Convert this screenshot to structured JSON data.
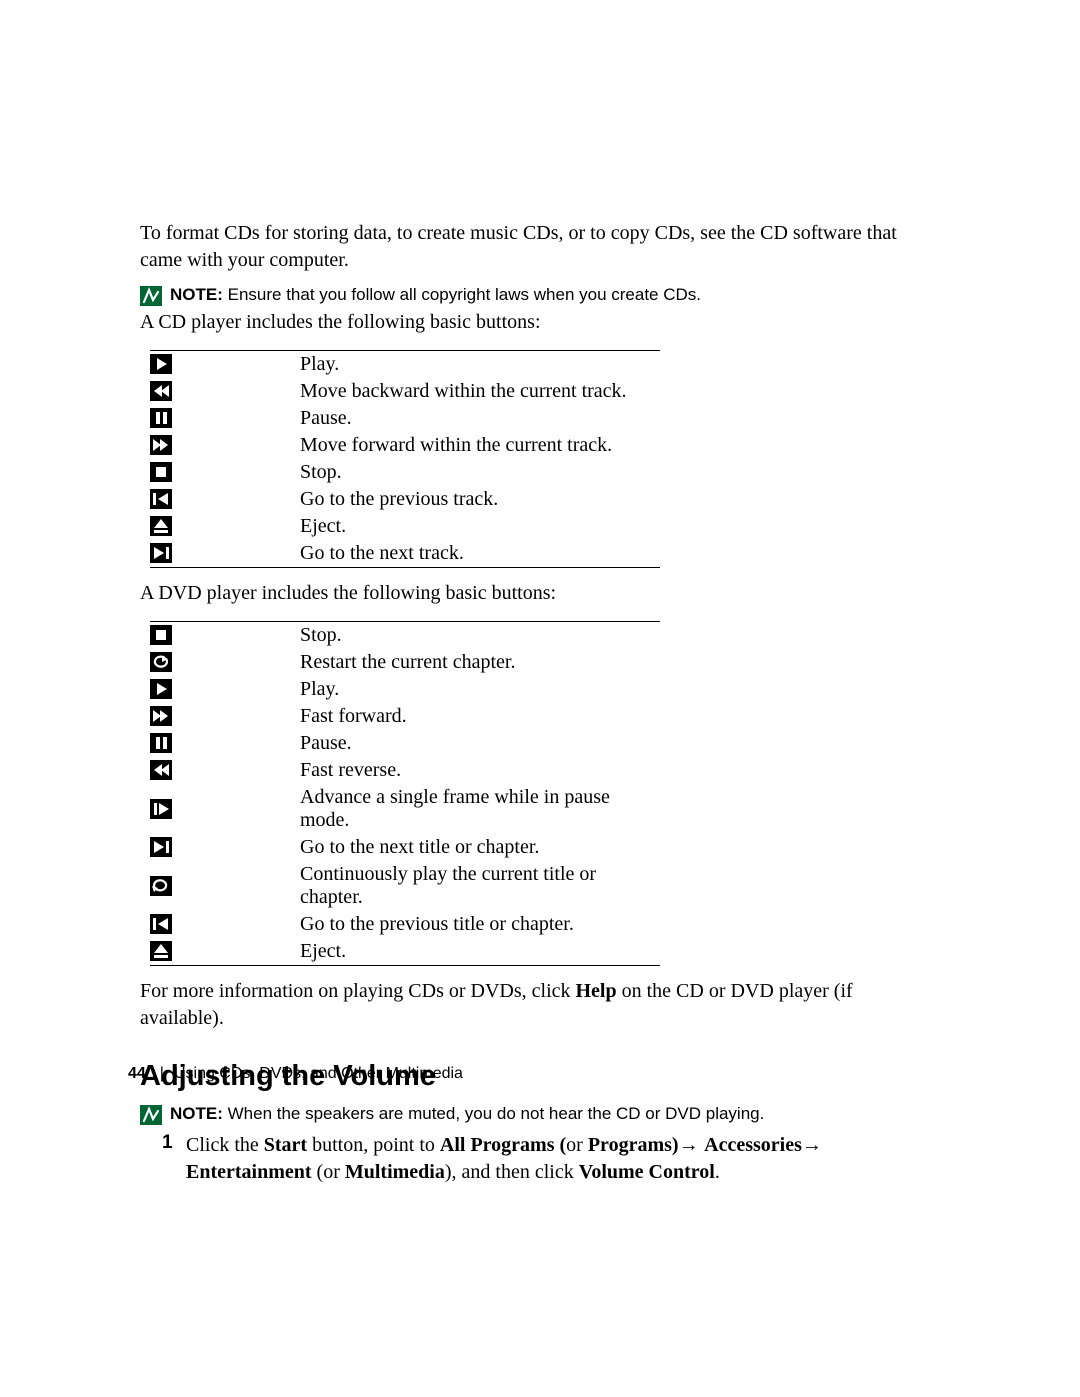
{
  "intro_paragraph": "To format CDs for storing data, to create music CDs, or to copy CDs, see the CD software that came with your computer.",
  "note1": {
    "label": "NOTE:",
    "text": " Ensure that you follow all copyright laws when you create CDs."
  },
  "cd_intro": "A CD player includes the following basic buttons:",
  "cd_buttons": [
    {
      "icon": "play",
      "desc": "Play."
    },
    {
      "icon": "rewind",
      "desc": "Move backward within the current track."
    },
    {
      "icon": "pause",
      "desc": "Pause."
    },
    {
      "icon": "ffwd",
      "desc": "Move forward within the current track."
    },
    {
      "icon": "stop",
      "desc": "Stop."
    },
    {
      "icon": "prev",
      "desc": "Go to the previous track."
    },
    {
      "icon": "eject",
      "desc": "Eject."
    },
    {
      "icon": "next",
      "desc": "Go to the next track."
    }
  ],
  "dvd_intro": "A DVD player includes the following basic buttons:",
  "dvd_buttons": [
    {
      "icon": "stop",
      "desc": "Stop."
    },
    {
      "icon": "restart",
      "desc": "Restart the current chapter."
    },
    {
      "icon": "play",
      "desc": "Play."
    },
    {
      "icon": "ffwd",
      "desc": "Fast forward."
    },
    {
      "icon": "pause",
      "desc": "Pause."
    },
    {
      "icon": "rewind",
      "desc": "Fast reverse."
    },
    {
      "icon": "frame",
      "desc": "Advance a single frame while in pause mode."
    },
    {
      "icon": "next",
      "desc": "Go to the next title or chapter."
    },
    {
      "icon": "repeat",
      "desc": "Continuously play the current title or chapter."
    },
    {
      "icon": "prev",
      "desc": "Go to the previous title or chapter."
    },
    {
      "icon": "eject",
      "desc": "Eject."
    }
  ],
  "more_info_pre": "For more information on playing CDs or DVDs, click ",
  "more_info_bold": "Help",
  "more_info_post": " on the CD or DVD player (if available).",
  "heading": "Adjusting the Volume",
  "note2": {
    "label": "NOTE:",
    "text": " When the speakers are muted, you do not hear the CD or DVD playing."
  },
  "step1": {
    "num": "1",
    "parts": [
      {
        "t": "Click the ",
        "b": false
      },
      {
        "t": "Start",
        "b": true
      },
      {
        "t": " button, point to ",
        "b": false
      },
      {
        "t": "All Programs (",
        "b": true
      },
      {
        "t": "or ",
        "b": false
      },
      {
        "t": "Programs)",
        "b": true
      },
      {
        "t": "→ ",
        "b": false,
        "arrow": true
      },
      {
        "t": "Accessories",
        "b": true
      },
      {
        "t": "→ ",
        "b": false,
        "arrow": true
      },
      {
        "t": "Entertainment ",
        "b": true
      },
      {
        "t": "(or ",
        "b": false
      },
      {
        "t": "Multimedia",
        "b": true
      },
      {
        "t": "), and then click ",
        "b": false
      },
      {
        "t": "Volume Control",
        "b": true
      },
      {
        "t": ".",
        "b": false
      }
    ]
  },
  "footer": {
    "page_number": "44",
    "section": "Using CDs, DVDs, and Other Multimedia"
  },
  "icon_color_bg": "#000000",
  "icon_color_fg": "#ffffff",
  "note_icon_bg": "#006633",
  "note_icon_fg": "#ffffff"
}
